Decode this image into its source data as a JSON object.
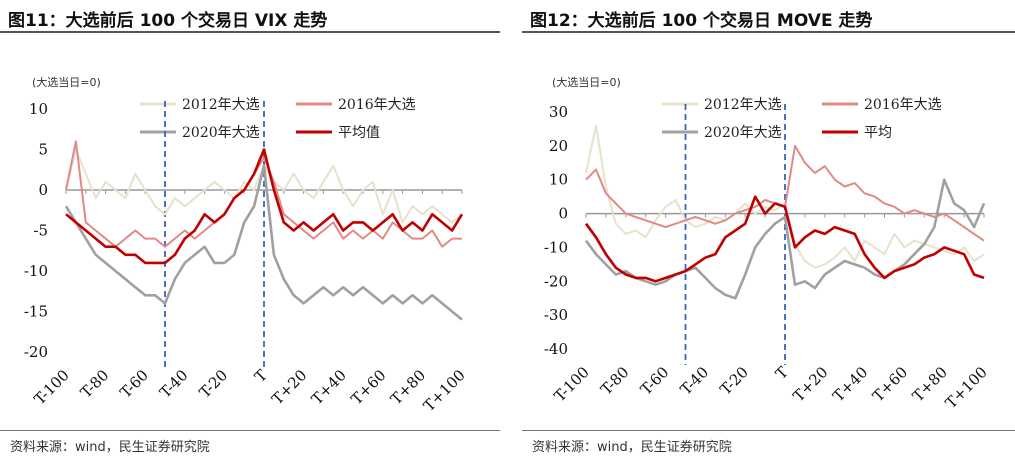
{
  "left": {
    "title": "图11：大选前后 100 个交易日 VIX 走势",
    "source": "资料来源：wind，民生证券研究院",
    "axis_note": "(大选当日=0)",
    "legend": [
      "2012年大选",
      "2016年大选",
      "2020年大选",
      "平均值"
    ]
  },
  "right": {
    "title": "图12：大选前后 100 个交易日 MOVE 走势",
    "source": "资料来源：wind，民生证券研究院",
    "axis_note": "(大选当日=0)",
    "legend": [
      "2012年大选",
      "2016年大选",
      "2020年大选",
      "平均"
    ]
  },
  "colors": {
    "s2012": "#e6e2cc",
    "s2016": "#e08a84",
    "s2020": "#a0a0a0",
    "avg": "#c00000",
    "marker": "#3366bb",
    "axis": "#999999"
  },
  "chart_data": [
    {
      "type": "line",
      "title": "图11：大选前后 100 个交易日 VIX 走势",
      "ylabel": "(大选当日=0)",
      "ylim": [
        -20,
        10
      ],
      "yticks": [
        10,
        5,
        0,
        -5,
        -10,
        -15,
        -20
      ],
      "xlim": [
        -100,
        100
      ],
      "xticks": [
        "T-100",
        "T-80",
        "T-60",
        "T-40",
        "T-20",
        "T",
        "T+20",
        "T+40",
        "T+60",
        "T+80",
        "T+100"
      ],
      "vlines": [
        -50,
        0
      ],
      "legend_position": "top",
      "x": [
        -100,
        -95,
        -90,
        -85,
        -80,
        -75,
        -70,
        -65,
        -60,
        -55,
        -50,
        -45,
        -40,
        -35,
        -30,
        -25,
        -20,
        -15,
        -10,
        -5,
        0,
        5,
        10,
        15,
        20,
        25,
        30,
        35,
        40,
        45,
        50,
        55,
        60,
        65,
        70,
        75,
        80,
        85,
        90,
        95,
        100
      ],
      "series": [
        {
          "name": "2012年大选",
          "values": [
            0,
            5,
            2,
            -1,
            1,
            0,
            -1,
            2,
            0,
            -2,
            -3,
            -1,
            -2,
            -1,
            0,
            1,
            0,
            -1,
            1,
            0,
            3,
            1,
            0,
            2,
            0,
            -1,
            1,
            3,
            0,
            -2,
            0,
            1,
            -3,
            0,
            -4,
            -2,
            -3,
            -2,
            -3,
            -4,
            -3
          ]
        },
        {
          "name": "2016年大选",
          "values": [
            0,
            6,
            -4,
            -5,
            -6,
            -7,
            -6,
            -5,
            -6,
            -6,
            -7,
            -6,
            -5,
            -6,
            -5,
            -4,
            -3,
            -1,
            0,
            2,
            4,
            1,
            -3,
            -4,
            -5,
            -6,
            -5,
            -4,
            -6,
            -5,
            -6,
            -5,
            -6,
            -4,
            -5,
            -6,
            -6,
            -5,
            -7,
            -6,
            -6
          ]
        },
        {
          "name": "2020年大选",
          "values": [
            -2,
            -4,
            -6,
            -8,
            -9,
            -10,
            -11,
            -12,
            -13,
            -13,
            -14,
            -11,
            -9,
            -8,
            -7,
            -9,
            -9,
            -8,
            -4,
            -2,
            3,
            -8,
            -11,
            -13,
            -14,
            -13,
            -12,
            -13,
            -12,
            -13,
            -12,
            -13,
            -14,
            -13,
            -14,
            -13,
            -14,
            -13,
            -14,
            -15,
            -16
          ]
        },
        {
          "name": "平均值",
          "values": [
            -3,
            -4,
            -5,
            -6,
            -7,
            -7,
            -8,
            -8,
            -9,
            -9,
            -9,
            -8,
            -6,
            -5,
            -3,
            -4,
            -3,
            -1,
            0,
            2,
            5,
            0,
            -4,
            -5,
            -4,
            -5,
            -4,
            -3,
            -5,
            -4,
            -4,
            -5,
            -4,
            -3,
            -5,
            -4,
            -5,
            -3,
            -4,
            -5,
            -3
          ]
        }
      ]
    },
    {
      "type": "line",
      "title": "图12：大选前后 100 个交易日 MOVE 走势",
      "ylabel": "(大选当日=0)",
      "ylim": [
        -40,
        30
      ],
      "yticks": [
        30,
        20,
        10,
        0,
        -10,
        -20,
        -30,
        -40
      ],
      "xlim": [
        -100,
        100
      ],
      "xticks": [
        "T-100",
        "T-80",
        "T-60",
        "T-40",
        "T-20",
        "T",
        "T+20",
        "T+40",
        "T+60",
        "T+80",
        "T+100"
      ],
      "vlines": [
        -50,
        0
      ],
      "legend_position": "top",
      "x": [
        -100,
        -95,
        -90,
        -85,
        -80,
        -75,
        -70,
        -65,
        -60,
        -55,
        -50,
        -45,
        -40,
        -35,
        -30,
        -25,
        -20,
        -15,
        -10,
        -5,
        0,
        5,
        10,
        15,
        20,
        25,
        30,
        35,
        40,
        45,
        50,
        55,
        60,
        65,
        70,
        75,
        80,
        85,
        90,
        95,
        100
      ],
      "series": [
        {
          "name": "2012年大选",
          "values": [
            12,
            26,
            8,
            -3,
            -6,
            -5,
            -7,
            -2,
            2,
            4,
            -2,
            -4,
            -3,
            -1,
            -2,
            0,
            3,
            0,
            2,
            1,
            3,
            -9,
            -14,
            -16,
            -15,
            -13,
            -10,
            -14,
            -8,
            -10,
            -12,
            -6,
            -10,
            -8,
            -9,
            -10,
            -11,
            -12,
            -10,
            -14,
            -12
          ]
        },
        {
          "name": "2016年大选",
          "values": [
            10,
            13,
            6,
            3,
            0,
            -1,
            -2,
            -3,
            -4,
            -3,
            -2,
            -1,
            -2,
            -3,
            -2,
            0,
            1,
            2,
            4,
            3,
            2,
            20,
            15,
            12,
            14,
            10,
            8,
            9,
            6,
            5,
            3,
            2,
            0,
            1,
            0,
            -1,
            0,
            -2,
            -4,
            -6,
            -8
          ]
        },
        {
          "name": "2020年大选",
          "values": [
            -8,
            -12,
            -15,
            -18,
            -17,
            -19,
            -20,
            -21,
            -20,
            -18,
            -17,
            -16,
            -19,
            -22,
            -24,
            -25,
            -18,
            -10,
            -6,
            -3,
            -1,
            -21,
            -20,
            -22,
            -18,
            -16,
            -14,
            -15,
            -16,
            -18,
            -19,
            -17,
            -15,
            -12,
            -9,
            -4,
            10,
            3,
            1,
            -4,
            3
          ]
        },
        {
          "name": "平均",
          "values": [
            -3,
            -7,
            -12,
            -16,
            -18,
            -19,
            -19,
            -20,
            -19,
            -18,
            -17,
            -15,
            -13,
            -12,
            -7,
            -5,
            -3,
            5,
            0,
            3,
            2,
            -10,
            -7,
            -5,
            -6,
            -4,
            -5,
            -6,
            -12,
            -16,
            -19,
            -17,
            -16,
            -15,
            -13,
            -12,
            -10,
            -11,
            -12,
            -18,
            -19
          ]
        }
      ]
    }
  ]
}
